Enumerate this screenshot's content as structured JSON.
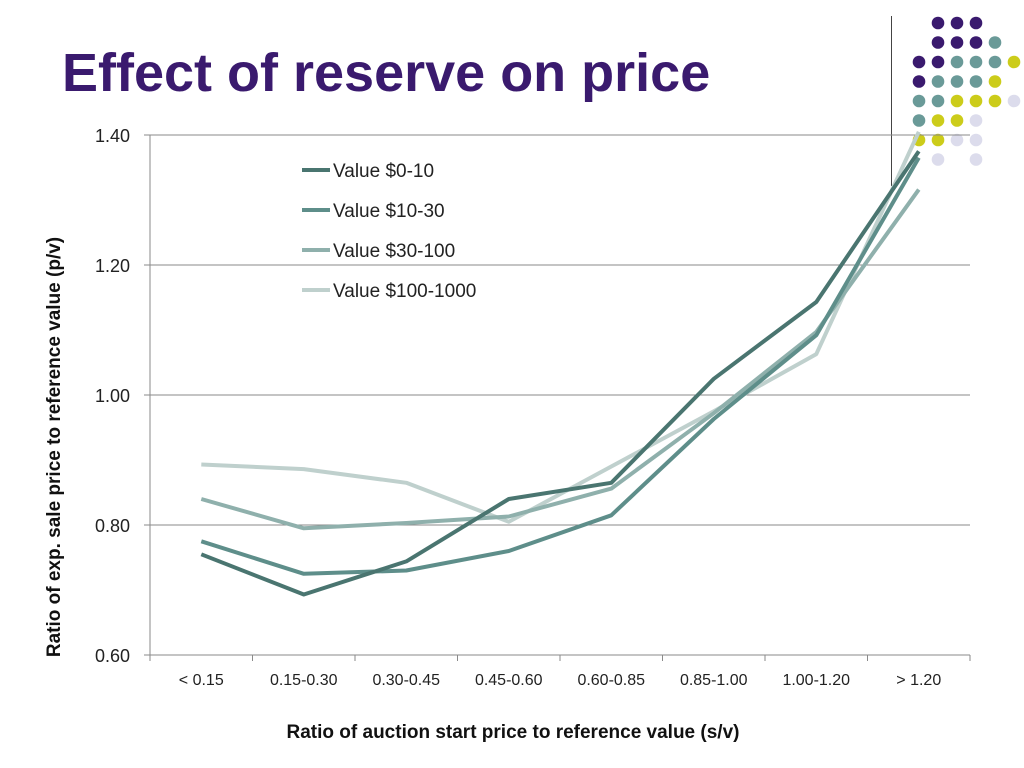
{
  "slide": {
    "title": "Effect of reserve on price"
  },
  "colors": {
    "title": "#3a1a6e",
    "dot_purple": "#3a1a6e",
    "dot_teal": "#6a9a98",
    "dot_lime": "#cccc1a",
    "dot_lavender": "#dcdcec"
  },
  "chart_data": {
    "type": "line",
    "title": "",
    "xlabel": "Ratio of auction start price to reference value (s/v)",
    "ylabel": "Ratio of exp. sale price to reference value (p/v)",
    "categories": [
      "< 0.15",
      "0.15-0.30",
      "0.30-0.45",
      "0.45-0.60",
      "0.60-0.85",
      "0.85-1.00",
      "1.00-1.20",
      "> 1.20"
    ],
    "ylim": [
      0.6,
      1.4
    ],
    "yticks": [
      "0.60",
      "0.80",
      "1.00",
      "1.20",
      "1.40"
    ],
    "ytick_values": [
      0.6,
      0.8,
      1.0,
      1.2,
      1.4
    ],
    "grid": true,
    "legend_position": "top-center",
    "series": [
      {
        "name": "Value $0-10",
        "color": "#4a7570",
        "values": [
          0.755,
          0.693,
          0.744,
          0.84,
          0.865,
          1.025,
          1.143,
          1.375
        ]
      },
      {
        "name": "Value $10-30",
        "color": "#5e8e8a",
        "values": [
          0.775,
          0.725,
          0.73,
          0.76,
          0.815,
          0.963,
          1.092,
          1.365
        ]
      },
      {
        "name": "Value $30-100",
        "color": "#8fb0ac",
        "values": [
          0.84,
          0.795,
          0.803,
          0.813,
          0.856,
          0.972,
          1.097,
          1.316
        ]
      },
      {
        "name": "Value $100-1000",
        "color": "#bfd0cd",
        "values": [
          0.893,
          0.886,
          0.865,
          0.805,
          0.89,
          0.975,
          1.063,
          1.405
        ]
      }
    ]
  }
}
